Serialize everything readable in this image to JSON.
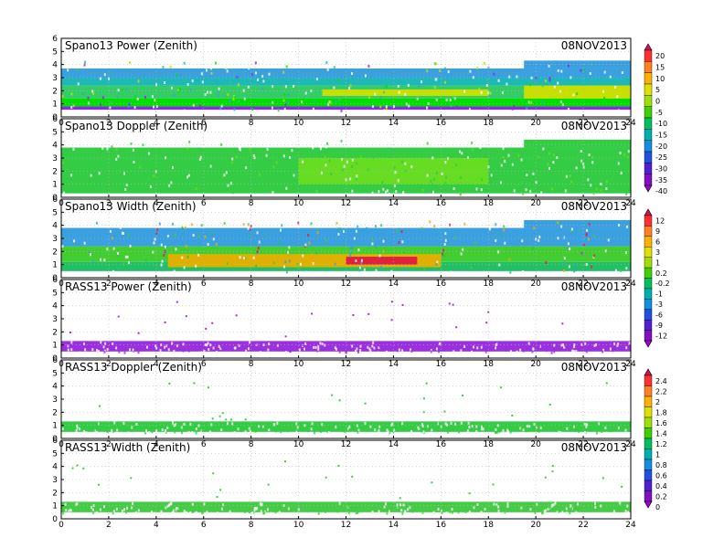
{
  "chart_data": [
    {
      "type": "heatmap",
      "title": "Spano13 Power (Zenith)",
      "date": "08NOV2013",
      "x_ticks": [
        "0",
        "2",
        "4",
        "6",
        "8",
        "10",
        "12",
        "14",
        "16",
        "18",
        "20",
        "22",
        "24"
      ],
      "y_ticks": [
        "0",
        "1",
        "2",
        "3",
        "4",
        "5",
        "6"
      ],
      "xlim": [
        0,
        24
      ],
      "ylim": [
        0,
        6
      ],
      "colorbar": "power",
      "layers": [
        {
          "band": [
            0.55,
            0.8
          ],
          "x": [
            0,
            24
          ],
          "color": "#8a2be2"
        },
        {
          "band": [
            0.8,
            1.4
          ],
          "x": [
            0,
            24
          ],
          "color": "#00e000"
        },
        {
          "band": [
            1.4,
            2.4
          ],
          "x": [
            0,
            24
          ],
          "color": "#33cc66"
        },
        {
          "band": [
            2.4,
            3.0
          ],
          "x": [
            0,
            24
          ],
          "color": "#1fb8b8"
        },
        {
          "band": [
            3.0,
            3.7
          ],
          "x": [
            0,
            24
          ],
          "color": "#3aa0e0"
        },
        {
          "band": [
            3.7,
            4.3
          ],
          "x": [
            19.5,
            24
          ],
          "color": "#3aa0e0"
        },
        {
          "band": [
            1.6,
            2.1
          ],
          "x": [
            11,
            18
          ],
          "color": "#c8e000"
        },
        {
          "band": [
            1.4,
            2.4
          ],
          "x": [
            19.5,
            24
          ],
          "color": "#c8e000"
        }
      ]
    },
    {
      "type": "heatmap",
      "title": "Spano13 Doppler (Zenith)",
      "date": "08NOV2013",
      "x_ticks": [
        "0",
        "2",
        "4",
        "6",
        "8",
        "10",
        "12",
        "14",
        "16",
        "18",
        "20",
        "22",
        "24"
      ],
      "y_ticks": [
        "0",
        "1",
        "2",
        "3",
        "4",
        "5",
        "6"
      ],
      "xlim": [
        0,
        24
      ],
      "ylim": [
        0,
        6
      ],
      "colorbar": "power",
      "layers": [
        {
          "band": [
            0.3,
            3.8
          ],
          "x": [
            0,
            24
          ],
          "color": "#33cc44"
        },
        {
          "band": [
            3.8,
            4.4
          ],
          "x": [
            19.5,
            24
          ],
          "color": "#33cc44"
        },
        {
          "band": [
            1.0,
            3.0
          ],
          "x": [
            10,
            18
          ],
          "color": "#66dd22"
        }
      ]
    },
    {
      "type": "heatmap",
      "title": "Spano13 Width (Zenith)",
      "date": "08NOV2013",
      "x_ticks": [
        "0",
        "2",
        "4",
        "6",
        "8",
        "10",
        "12",
        "14",
        "16",
        "18",
        "20",
        "22",
        "24"
      ],
      "y_ticks": [
        "0",
        "1",
        "2",
        "3",
        "4",
        "5",
        "6"
      ],
      "xlim": [
        0,
        24
      ],
      "ylim": [
        0,
        6
      ],
      "colorbar": "width",
      "layers": [
        {
          "band": [
            0.5,
            1.2
          ],
          "x": [
            0,
            24
          ],
          "color": "#22c066"
        },
        {
          "band": [
            1.2,
            2.4
          ],
          "x": [
            0,
            24
          ],
          "color": "#44cc33"
        },
        {
          "band": [
            2.4,
            3.8
          ],
          "x": [
            0,
            24
          ],
          "color": "#3aa0e0"
        },
        {
          "band": [
            3.8,
            4.4
          ],
          "x": [
            19.5,
            24
          ],
          "color": "#3aa0e0"
        },
        {
          "band": [
            0.8,
            1.8
          ],
          "x": [
            4.5,
            16
          ],
          "color": "#e0b000"
        },
        {
          "band": [
            1.0,
            1.6
          ],
          "x": [
            12,
            15
          ],
          "color": "#e02040"
        }
      ]
    },
    {
      "type": "heatmap",
      "title": "RASS13 Power (Zenith)",
      "date": "08NOV2013",
      "x_ticks": [
        "0",
        "2",
        "4",
        "6",
        "8",
        "10",
        "12",
        "14",
        "16",
        "18",
        "20",
        "22",
        "24"
      ],
      "y_ticks": [
        "0",
        "1",
        "2",
        "3",
        "4",
        "5",
        "6"
      ],
      "xlim": [
        0,
        24
      ],
      "ylim": [
        0,
        6
      ],
      "colorbar": "width",
      "layers": [
        {
          "band": [
            0.5,
            1.3
          ],
          "x": [
            0,
            24
          ],
          "color": "#9b30e0"
        }
      ]
    },
    {
      "type": "heatmap",
      "title": "RASS13 Doppler (Zenith)",
      "date": "08NOV2013",
      "x_ticks": [
        "0",
        "2",
        "4",
        "6",
        "8",
        "10",
        "12",
        "14",
        "16",
        "18",
        "20",
        "22",
        "24"
      ],
      "y_ticks": [
        "0",
        "1",
        "2",
        "3",
        "4",
        "5",
        "6"
      ],
      "xlim": [
        0,
        24
      ],
      "ylim": [
        0,
        6
      ],
      "colorbar": "doppler",
      "layers": [
        {
          "band": [
            0.5,
            1.3
          ],
          "x": [
            0,
            24
          ],
          "color": "#33cc44"
        }
      ]
    },
    {
      "type": "heatmap",
      "title": "RASS13 Width (Zenith)",
      "date": "08NOV2013",
      "x_ticks": [
        "0",
        "2",
        "4",
        "6",
        "8",
        "10",
        "12",
        "14",
        "16",
        "18",
        "20",
        "22",
        "24"
      ],
      "y_ticks": [
        "0",
        "1",
        "2",
        "3",
        "4",
        "5",
        "6"
      ],
      "xlim": [
        0,
        24
      ],
      "ylim": [
        0,
        6
      ],
      "colorbar": "doppler",
      "layers": [
        {
          "band": [
            0.5,
            1.3
          ],
          "x": [
            0,
            24
          ],
          "color": "#44cc44"
        }
      ]
    }
  ],
  "colorbars": [
    {
      "id": "power",
      "labels": [
        "20",
        "15",
        "10",
        "5",
        "0",
        "-5",
        "-10",
        "-15",
        "-20",
        "-25",
        "-30",
        "-35",
        "-40"
      ],
      "colors": [
        "#d0105a",
        "#ff3030",
        "#ff8020",
        "#ffb000",
        "#e0e000",
        "#a0e000",
        "#40d000",
        "#00c060",
        "#00b0b0",
        "#1090e0",
        "#2050e0",
        "#5020d0",
        "#8010c0",
        "#a000d0"
      ]
    },
    {
      "id": "width",
      "labels": [
        "12",
        "9",
        "6",
        "3",
        "1",
        "0.2",
        "-0.2",
        "-1",
        "-3",
        "-6",
        "-9",
        "-12"
      ],
      "colors": [
        "#d0105a",
        "#ff3030",
        "#ff8020",
        "#ffb000",
        "#e0e000",
        "#a0e000",
        "#40d000",
        "#00c060",
        "#00b0b0",
        "#1090e0",
        "#2050e0",
        "#5020d0",
        "#8010c0",
        "#a000d0"
      ]
    },
    {
      "id": "doppler",
      "labels": [
        "2.4",
        "2.2",
        "2",
        "1.8",
        "1.6",
        "1.4",
        "1.2",
        "1",
        "0.8",
        "0.6",
        "0.4",
        "0.2",
        "0"
      ],
      "colors": [
        "#d0105a",
        "#ff3030",
        "#ff8020",
        "#ffb000",
        "#e0e000",
        "#a0e000",
        "#40d000",
        "#00c060",
        "#00b0b0",
        "#1090e0",
        "#2050e0",
        "#5020d0",
        "#8010c0",
        "#a000d0"
      ]
    }
  ]
}
